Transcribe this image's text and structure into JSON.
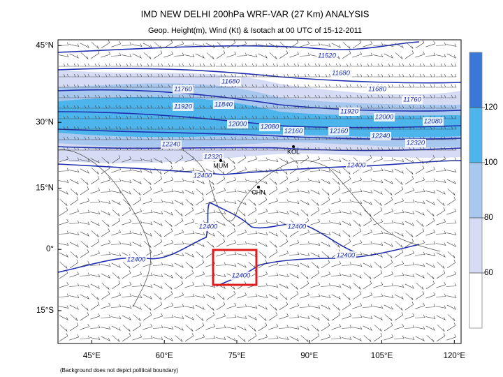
{
  "header": {
    "title": "IMD NEW DELHI 200hPa WRF-VAR (27 Km) ANALYSIS",
    "subtitle": "Geop. Height(m), Wind (Kt) & Isotach  at 00 UTC of 15-12-2011"
  },
  "map": {
    "lonlim": [
      38,
      121.4
    ],
    "latlim": [
      -22.7,
      46
    ],
    "lonticks": [
      {
        "value": 45,
        "label": "45°E"
      },
      {
        "value": 60,
        "label": "60°E"
      },
      {
        "value": 75,
        "label": "75°E"
      },
      {
        "value": 90,
        "label": "90°E"
      },
      {
        "value": 105,
        "label": "105°E"
      },
      {
        "value": 120,
        "label": "120°E"
      }
    ],
    "latticks": [
      {
        "value": 45,
        "label": "45°N"
      },
      {
        "value": 30,
        "label": "30°N"
      },
      {
        "value": 15,
        "label": "15°N"
      },
      {
        "value": 0,
        "label": "0°"
      },
      {
        "value": -15,
        "label": "15°S"
      }
    ],
    "contour_labels": [
      "11520",
      "11680",
      "11680",
      "11760",
      "11680",
      "11760",
      "11920",
      "11840",
      "12000",
      "12080",
      "11920",
      "12000",
      "12080",
      "12160",
      "12160",
      "12240",
      "12320",
      "12240",
      "12320",
      "12400",
      "12400",
      "12400",
      "12400",
      "12400",
      "12400",
      "12400"
    ],
    "cities": [
      "MUM",
      "CHN",
      "KOL"
    ]
  },
  "colorbar": {
    "lim": [
      40,
      140
    ],
    "ticks": [
      60,
      80,
      100,
      120
    ],
    "colors": [
      "#ffffff",
      "#d7dcf5",
      "#a8c8f0",
      "#4eb4ec",
      "#3a78d8"
    ]
  },
  "footer": {
    "note": "(Background does not depict political boundary)"
  }
}
